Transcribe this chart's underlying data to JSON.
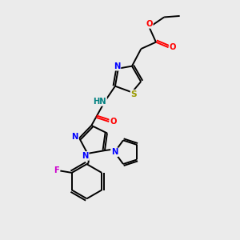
{
  "bg_color": "#ebebeb",
  "bond_color": "#000000",
  "atom_colors": {
    "N": "#0000ff",
    "O": "#ff0000",
    "S": "#999900",
    "F": "#cc00cc",
    "NH": "#008080",
    "C": "#000000"
  }
}
